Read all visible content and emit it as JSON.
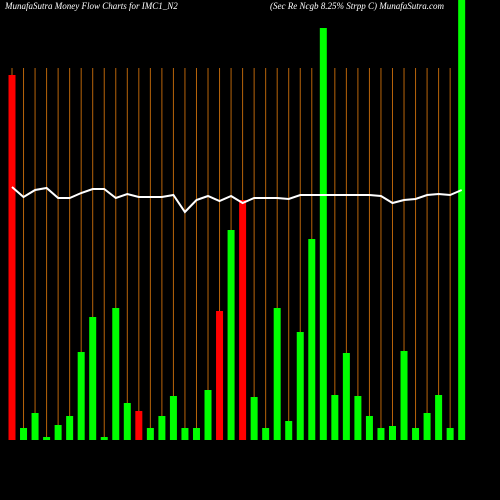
{
  "chart_data": {
    "type": "bar",
    "title": "MunafaSutra  Money Flow  Charts for IMC1_N2",
    "subtitle": "(Sec Re   Ncgb 8.25% Strpp C) MunafaSutra.com",
    "categories": [
      null,
      null,
      null,
      null,
      null,
      null,
      null,
      null,
      null,
      null,
      null,
      null,
      null,
      null,
      null,
      null,
      null,
      null,
      null,
      null,
      null,
      null,
      null,
      null,
      null,
      null,
      null,
      null,
      null,
      null,
      null,
      null,
      null,
      null,
      null,
      null,
      null,
      null,
      null,
      null
    ],
    "values": [
      365,
      12,
      27,
      3,
      15,
      24,
      88,
      123,
      3,
      132,
      37,
      29,
      12,
      24,
      44,
      12,
      12,
      50,
      129,
      210,
      240,
      43,
      12,
      132,
      19,
      108,
      201,
      412,
      45,
      87,
      44,
      24,
      12,
      14,
      89,
      12,
      27,
      45,
      12,
      440
    ],
    "colors": [
      "#ff0000",
      "#00ff00",
      "#00ff00",
      "#00ff00",
      "#00ff00",
      "#00ff00",
      "#00ff00",
      "#00ff00",
      "#00ff00",
      "#00ff00",
      "#00ff00",
      "#ff0000",
      "#00ff00",
      "#00ff00",
      "#00ff00",
      "#00ff00",
      "#00ff00",
      "#00ff00",
      "#ff0000",
      "#00ff00",
      "#ff0000",
      "#00ff00",
      "#00ff00",
      "#00ff00",
      "#00ff00",
      "#00ff00",
      "#00ff00",
      "#00ff00",
      "#00ff00",
      "#00ff00",
      "#00ff00",
      "#00ff00",
      "#00ff00",
      "#00ff00",
      "#00ff00",
      "#00ff00",
      "#00ff00",
      "#00ff00",
      "#00ff00",
      "#00ff00"
    ],
    "line_values": [
      253,
      243,
      250,
      252,
      242,
      242,
      247,
      251,
      251,
      242,
      246,
      243,
      243,
      243,
      245,
      228,
      240,
      244,
      239,
      244,
      237,
      242,
      242,
      242,
      241,
      245,
      245,
      245,
      245,
      245,
      245,
      245,
      244,
      237,
      240,
      241,
      245,
      246,
      245,
      250
    ],
    "line_color": "#ffffff",
    "grid_color": "#b8640a",
    "ylim": [
      0,
      440
    ],
    "grid": true
  }
}
